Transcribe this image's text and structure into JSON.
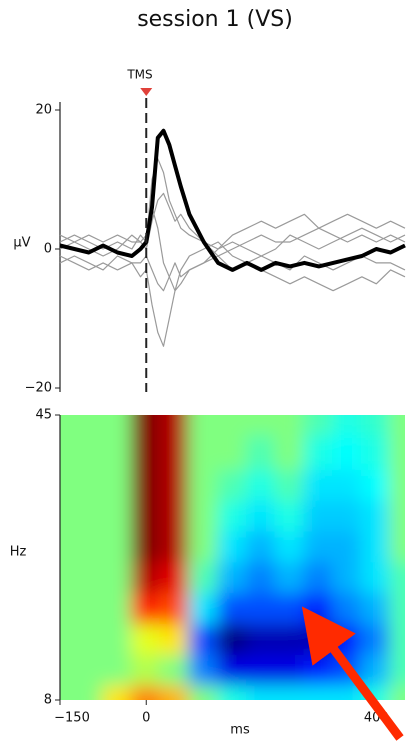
{
  "chart_data": [
    {
      "type": "line",
      "title": "session 1 (VS)",
      "ylabel": "μV",
      "annotation": "TMS",
      "marker_x": 0,
      "x": [
        -150,
        -125,
        -100,
        -75,
        -50,
        -25,
        -10,
        0,
        10,
        20,
        30,
        40,
        50,
        60,
        75,
        100,
        125,
        150,
        175,
        200,
        225,
        250,
        275,
        300,
        325,
        350,
        375,
        400,
        425,
        450
      ],
      "xlim": [
        -150,
        450
      ],
      "ylim": [
        -20,
        20
      ],
      "yticks": [
        20,
        0,
        {
          "value": -20,
          "label": "−20"
        }
      ],
      "series": [
        {
          "color": "#9a9a9a",
          "values": [
            1,
            2,
            1,
            0,
            1,
            0,
            2,
            1,
            10,
            13,
            11,
            7,
            5,
            3,
            2,
            1,
            0,
            2,
            3,
            4,
            3,
            4,
            5,
            3,
            4,
            5,
            4,
            3,
            4,
            3
          ]
        },
        {
          "color": "#9a9a9a",
          "values": [
            -1,
            -2,
            -3,
            -2,
            -3,
            -2,
            -4,
            -3,
            -8,
            -12,
            -14,
            -10,
            -6,
            -3,
            -1,
            0,
            1,
            -1,
            -2,
            -3,
            -4,
            -5,
            -4,
            -5,
            -6,
            -5,
            -4,
            -5,
            -3,
            -4
          ]
        },
        {
          "color": "#9a9a9a",
          "values": [
            2,
            1,
            0,
            -1,
            0,
            2,
            1,
            0,
            4,
            7,
            8,
            6,
            4,
            5,
            3,
            1,
            -1,
            0,
            1,
            2,
            1,
            1,
            2,
            3,
            2,
            1,
            2,
            1,
            2,
            1
          ]
        },
        {
          "color": "#9a9a9a",
          "values": [
            -2,
            -1,
            -2,
            -3,
            -1,
            -2,
            -2,
            -1,
            -3,
            -5,
            -6,
            -4,
            -2,
            -4,
            -3,
            -2,
            -1,
            -3,
            -2,
            -1,
            -2,
            -3,
            -1,
            -2,
            -3,
            -2,
            -1,
            -2,
            -2,
            -3
          ]
        },
        {
          "color": "#9a9a9a",
          "values": [
            0,
            1,
            2,
            1,
            2,
            1,
            1,
            2,
            6,
            3,
            -2,
            -4,
            -6,
            -5,
            -3,
            -2,
            0,
            1,
            0,
            -1,
            0,
            2,
            1,
            0,
            1,
            2,
            3,
            2,
            1,
            2
          ]
        },
        {
          "color": "#000000",
          "values": [
            0.5,
            0,
            -0.5,
            0.5,
            -0.5,
            -1,
            0,
            1,
            6,
            16,
            17,
            15,
            12,
            9,
            5,
            1,
            -2,
            -3,
            -2,
            -3,
            -2,
            -2.5,
            -2,
            -2.5,
            -2,
            -1.5,
            -1,
            0,
            -0.5,
            0.5
          ]
        }
      ]
    },
    {
      "type": "heatmap",
      "xlabel": "ms",
      "ylabel": "Hz",
      "colormap": "jet",
      "zlim": [
        -1,
        1
      ],
      "x": [
        -150,
        -100,
        -50,
        0,
        50,
        100,
        150,
        200,
        250,
        300,
        350,
        400,
        450
      ],
      "y": [
        8,
        12,
        16,
        20,
        24,
        28,
        32,
        36,
        40,
        45
      ],
      "xlim": [
        -150,
        450
      ],
      "ylim": [
        8,
        45
      ],
      "xticks": [
        {
          "value": -150,
          "label": "−150"
        },
        0,
        400
      ],
      "yticks": [
        45,
        8
      ],
      "z": [
        [
          0,
          0,
          0.3,
          0.5,
          0.4,
          0,
          -0.2,
          -0.3,
          -0.3,
          -0.3,
          -0.3,
          -0.2,
          0
        ],
        [
          0,
          0,
          0,
          0.1,
          0,
          -0.5,
          -0.8,
          -0.8,
          -0.8,
          -0.7,
          -0.6,
          -0.4,
          -0.1
        ],
        [
          0,
          0,
          0,
          0.2,
          0.3,
          -0.6,
          -1,
          -0.9,
          -0.9,
          -0.9,
          -0.7,
          -0.5,
          -0.1
        ],
        [
          0,
          0,
          0,
          0.7,
          0.6,
          -0.3,
          -0.6,
          -0.6,
          -0.6,
          -0.7,
          -0.5,
          -0.4,
          -0.1
        ],
        [
          0,
          0,
          0,
          0.9,
          0.8,
          -0.1,
          -0.4,
          -0.5,
          -0.4,
          -0.5,
          -0.4,
          -0.3,
          -0.1
        ],
        [
          0,
          0,
          0,
          1,
          0.9,
          0,
          -0.3,
          -0.4,
          -0.3,
          -0.4,
          -0.4,
          -0.3,
          0
        ],
        [
          0,
          0,
          0,
          1,
          0.9,
          0,
          -0.2,
          -0.3,
          -0.2,
          -0.35,
          -0.35,
          -0.3,
          0
        ],
        [
          0,
          0,
          0,
          1,
          0.9,
          0,
          -0.1,
          -0.2,
          -0.1,
          -0.3,
          -0.3,
          -0.25,
          0
        ],
        [
          0,
          0,
          0,
          1,
          0.9,
          0,
          0,
          -0.1,
          0,
          -0.2,
          -0.25,
          -0.2,
          0
        ],
        [
          0,
          0,
          0,
          1,
          0.9,
          0,
          0,
          0,
          0,
          -0.1,
          -0.2,
          -0.15,
          0
        ]
      ]
    }
  ]
}
